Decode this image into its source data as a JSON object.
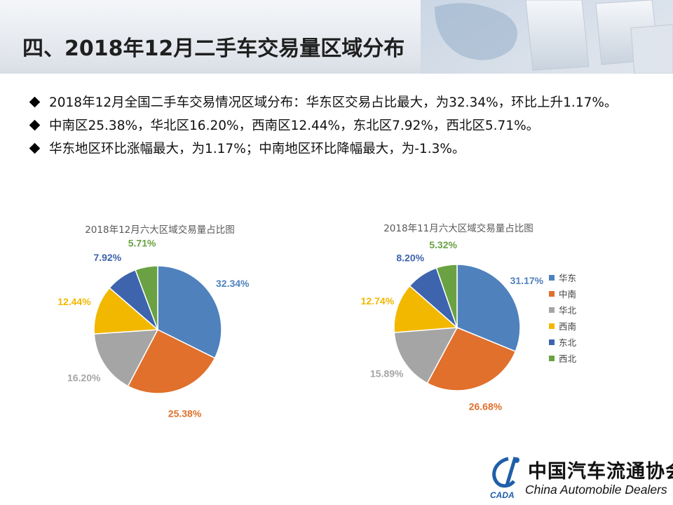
{
  "page": {
    "title": "四、2018年12月二手车交易量区域分布"
  },
  "bullets": [
    "2018年12月全国二手车交易情况区域分布：华东区交易占比最大，为32.34%，环比上升1.17%。",
    "中南区25.38%，华北区16.20%，西南区12.44%，东北区7.92%，西北区5.71%。",
    "华东地区环比涨幅最大，为1.17%；中南地区环比降幅最大，为-1.3%。"
  ],
  "colors": {
    "华东": "#4f81bd",
    "中南": "#e0702c",
    "华北": "#a5a5a5",
    "西南": "#f2b800",
    "东北": "#3d64ad",
    "西北": "#6aa243"
  },
  "chart_data": [
    {
      "type": "pie",
      "title": "2018年12月六大区域交易量占比图",
      "categories": [
        "华东",
        "中南",
        "华北",
        "西南",
        "东北",
        "西北"
      ],
      "values": [
        32.34,
        25.38,
        16.2,
        12.44,
        7.92,
        5.71
      ],
      "labels": [
        "32.34%",
        "25.38%",
        "16.20%",
        "12.44%",
        "7.92%",
        "5.71%"
      ]
    },
    {
      "type": "pie",
      "title": "2018年11月六大区域交易量占比图",
      "categories": [
        "华东",
        "中南",
        "华北",
        "西南",
        "东北",
        "西北"
      ],
      "values": [
        31.17,
        26.68,
        15.89,
        12.74,
        8.2,
        5.32
      ],
      "labels": [
        "31.17%",
        "26.68%",
        "15.89%",
        "12.74%",
        "8.20%",
        "5.32%"
      ],
      "legend": "right"
    }
  ],
  "logo": {
    "name": "中国汽车流通协会",
    "sub": "China Automobile Dealers",
    "mark": "CADA"
  }
}
